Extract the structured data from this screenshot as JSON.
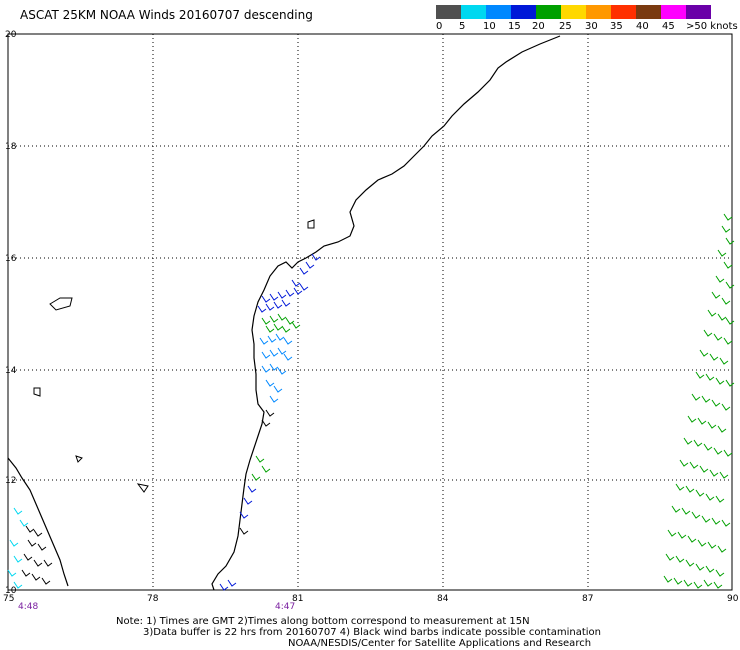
{
  "title": "ASCAT 25KM NOAA Winds 20160707 descending",
  "legend": {
    "colors": [
      "#505050",
      "#9a9a9a",
      "#00d8f0",
      "#0088ff",
      "#0018d8",
      "#00a000",
      "#ffd800",
      "#ff9800",
      "#ff3000",
      "#e00000",
      "#7a3a10",
      "#c89a70",
      "#ff00ff",
      "#b000d8",
      "#6a00a8"
    ],
    "labels": [
      "0",
      "5",
      "10",
      "15",
      "20",
      "25",
      "30",
      "35",
      "40",
      "45",
      ">50 knots"
    ]
  },
  "axes": {
    "x_ticks": [
      "75",
      "78",
      "81",
      "84",
      "87",
      "90"
    ],
    "y_ticks": [
      "20",
      "18",
      "16",
      "14",
      "12",
      "10"
    ]
  },
  "pass_times": [
    {
      "label": "4:48",
      "lon": 75.4
    },
    {
      "label": "4:47",
      "lon": 80.6
    }
  ],
  "notes": {
    "line1": "Note: 1) Times are GMT 2)Times along bottom correspond to measurement at 15N",
    "line2": "3)Data buffer is 22 hrs from 20160707 4) Black wind barbs indicate possible contamination",
    "line3": "NOAA/NESDIS/Center for Satellite Applications and Research"
  }
}
